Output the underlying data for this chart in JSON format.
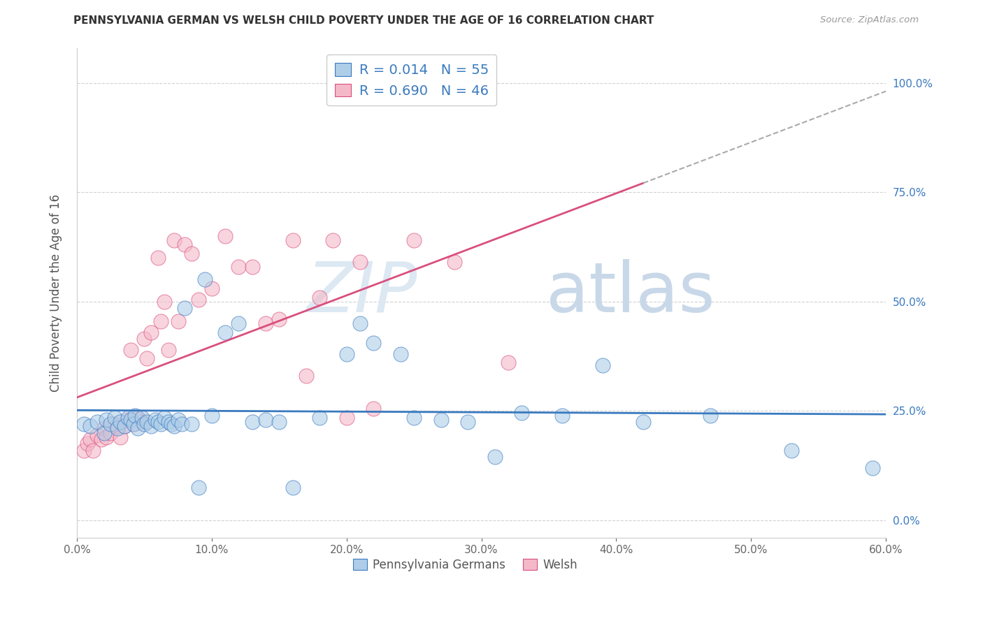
{
  "title": "PENNSYLVANIA GERMAN VS WELSH CHILD POVERTY UNDER THE AGE OF 16 CORRELATION CHART",
  "source": "Source: ZipAtlas.com",
  "ylabel": "Child Poverty Under the Age of 16",
  "xlim": [
    0.0,
    0.6
  ],
  "ylim": [
    -0.04,
    1.08
  ],
  "yticks": [
    0.0,
    0.25,
    0.5,
    0.75,
    1.0
  ],
  "ytick_labels": [
    "0.0%",
    "25.0%",
    "50.0%",
    "75.0%",
    "100.0%"
  ],
  "xticks": [
    0.0,
    0.1,
    0.2,
    0.3,
    0.4,
    0.5,
    0.6
  ],
  "xtick_labels": [
    "0.0%",
    "10.0%",
    "20.0%",
    "30.0%",
    "40.0%",
    "50.0%",
    "60.0%"
  ],
  "color_blue": "#aecde8",
  "color_pink": "#f4b8c8",
  "line_blue": "#3a7abf",
  "line_pink": "#d94f7e",
  "watermark_zip_color": "#dce8f2",
  "watermark_atlas_color": "#c8d8e8",
  "background_color": "#ffffff",
  "grid_color": "#cccccc",
  "blue_scatter_x": [
    0.005,
    0.01,
    0.015,
    0.02,
    0.022,
    0.025,
    0.028,
    0.03,
    0.032,
    0.035,
    0.038,
    0.04,
    0.042,
    0.043,
    0.045,
    0.048,
    0.05,
    0.052,
    0.055,
    0.058,
    0.06,
    0.062,
    0.065,
    0.068,
    0.07,
    0.072,
    0.075,
    0.078,
    0.08,
    0.085,
    0.09,
    0.095,
    0.1,
    0.11,
    0.12,
    0.13,
    0.14,
    0.15,
    0.16,
    0.18,
    0.2,
    0.21,
    0.22,
    0.24,
    0.25,
    0.27,
    0.29,
    0.31,
    0.33,
    0.36,
    0.39,
    0.42,
    0.47,
    0.53,
    0.59
  ],
  "blue_scatter_y": [
    0.22,
    0.215,
    0.225,
    0.2,
    0.23,
    0.22,
    0.235,
    0.21,
    0.225,
    0.215,
    0.235,
    0.23,
    0.22,
    0.24,
    0.21,
    0.235,
    0.22,
    0.225,
    0.215,
    0.23,
    0.225,
    0.22,
    0.235,
    0.225,
    0.22,
    0.215,
    0.23,
    0.22,
    0.485,
    0.22,
    0.075,
    0.55,
    0.24,
    0.43,
    0.45,
    0.225,
    0.23,
    0.225,
    0.075,
    0.235,
    0.38,
    0.45,
    0.405,
    0.38,
    0.235,
    0.23,
    0.225,
    0.145,
    0.245,
    0.24,
    0.355,
    0.225,
    0.24,
    0.16,
    0.12
  ],
  "pink_scatter_x": [
    0.005,
    0.008,
    0.01,
    0.012,
    0.015,
    0.018,
    0.02,
    0.022,
    0.025,
    0.028,
    0.03,
    0.032,
    0.035,
    0.038,
    0.04,
    0.042,
    0.045,
    0.048,
    0.05,
    0.052,
    0.055,
    0.06,
    0.062,
    0.065,
    0.068,
    0.072,
    0.075,
    0.08,
    0.085,
    0.09,
    0.1,
    0.11,
    0.12,
    0.13,
    0.14,
    0.15,
    0.16,
    0.17,
    0.18,
    0.19,
    0.2,
    0.21,
    0.22,
    0.25,
    0.28,
    0.32
  ],
  "pink_scatter_y": [
    0.16,
    0.175,
    0.185,
    0.16,
    0.195,
    0.185,
    0.21,
    0.19,
    0.2,
    0.22,
    0.215,
    0.19,
    0.215,
    0.23,
    0.39,
    0.22,
    0.235,
    0.225,
    0.415,
    0.37,
    0.43,
    0.6,
    0.455,
    0.5,
    0.39,
    0.64,
    0.455,
    0.63,
    0.61,
    0.505,
    0.53,
    0.65,
    0.58,
    0.58,
    0.45,
    0.46,
    0.64,
    0.33,
    0.51,
    0.64,
    0.235,
    0.59,
    0.255,
    0.64,
    0.59,
    0.36
  ]
}
